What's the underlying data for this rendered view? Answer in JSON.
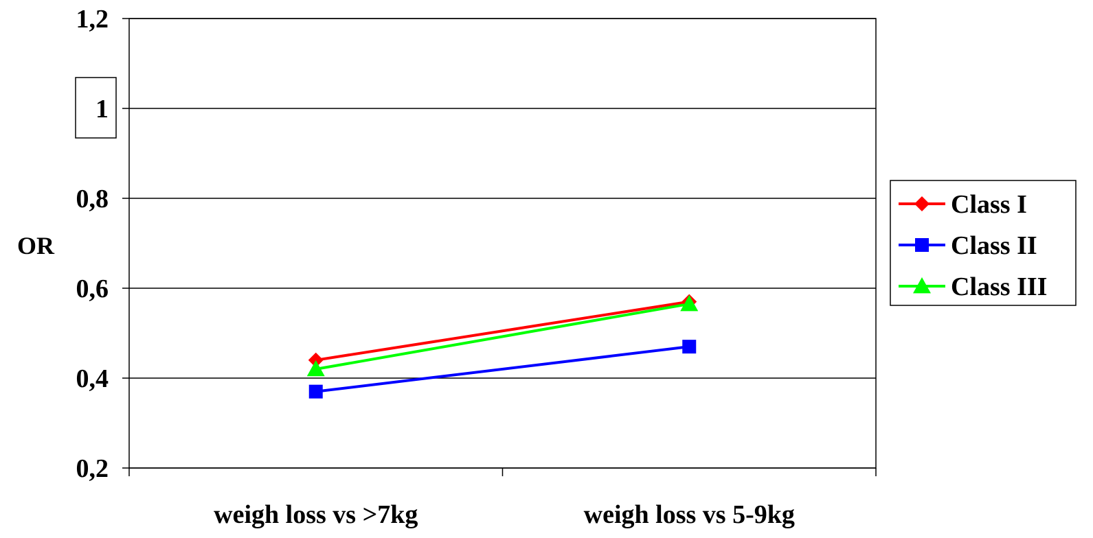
{
  "chart_data": {
    "type": "line",
    "title": "",
    "xlabel": "",
    "ylabel": "OR",
    "ylim": [
      0.2,
      1.2
    ],
    "yticks": [
      "0,2",
      "0,4",
      "0,6",
      "0,8",
      "1",
      "1,2"
    ],
    "ytick_values": [
      0.2,
      0.4,
      0.6,
      0.8,
      1.0,
      1.2
    ],
    "highlighted_tick": "1",
    "categories": [
      "weigh loss vs >7kg",
      "weigh loss vs 5-9kg"
    ],
    "grid": true,
    "legend_position": "right",
    "series": [
      {
        "name": "Class I",
        "values": [
          0.44,
          0.57
        ],
        "color": "#ff0000",
        "marker": "diamond"
      },
      {
        "name": "Class II",
        "values": [
          0.37,
          0.47
        ],
        "color": "#0000ff",
        "marker": "square"
      },
      {
        "name": "Class III",
        "values": [
          0.42,
          0.565
        ],
        "color": "#00ff00",
        "marker": "triangle"
      }
    ]
  }
}
